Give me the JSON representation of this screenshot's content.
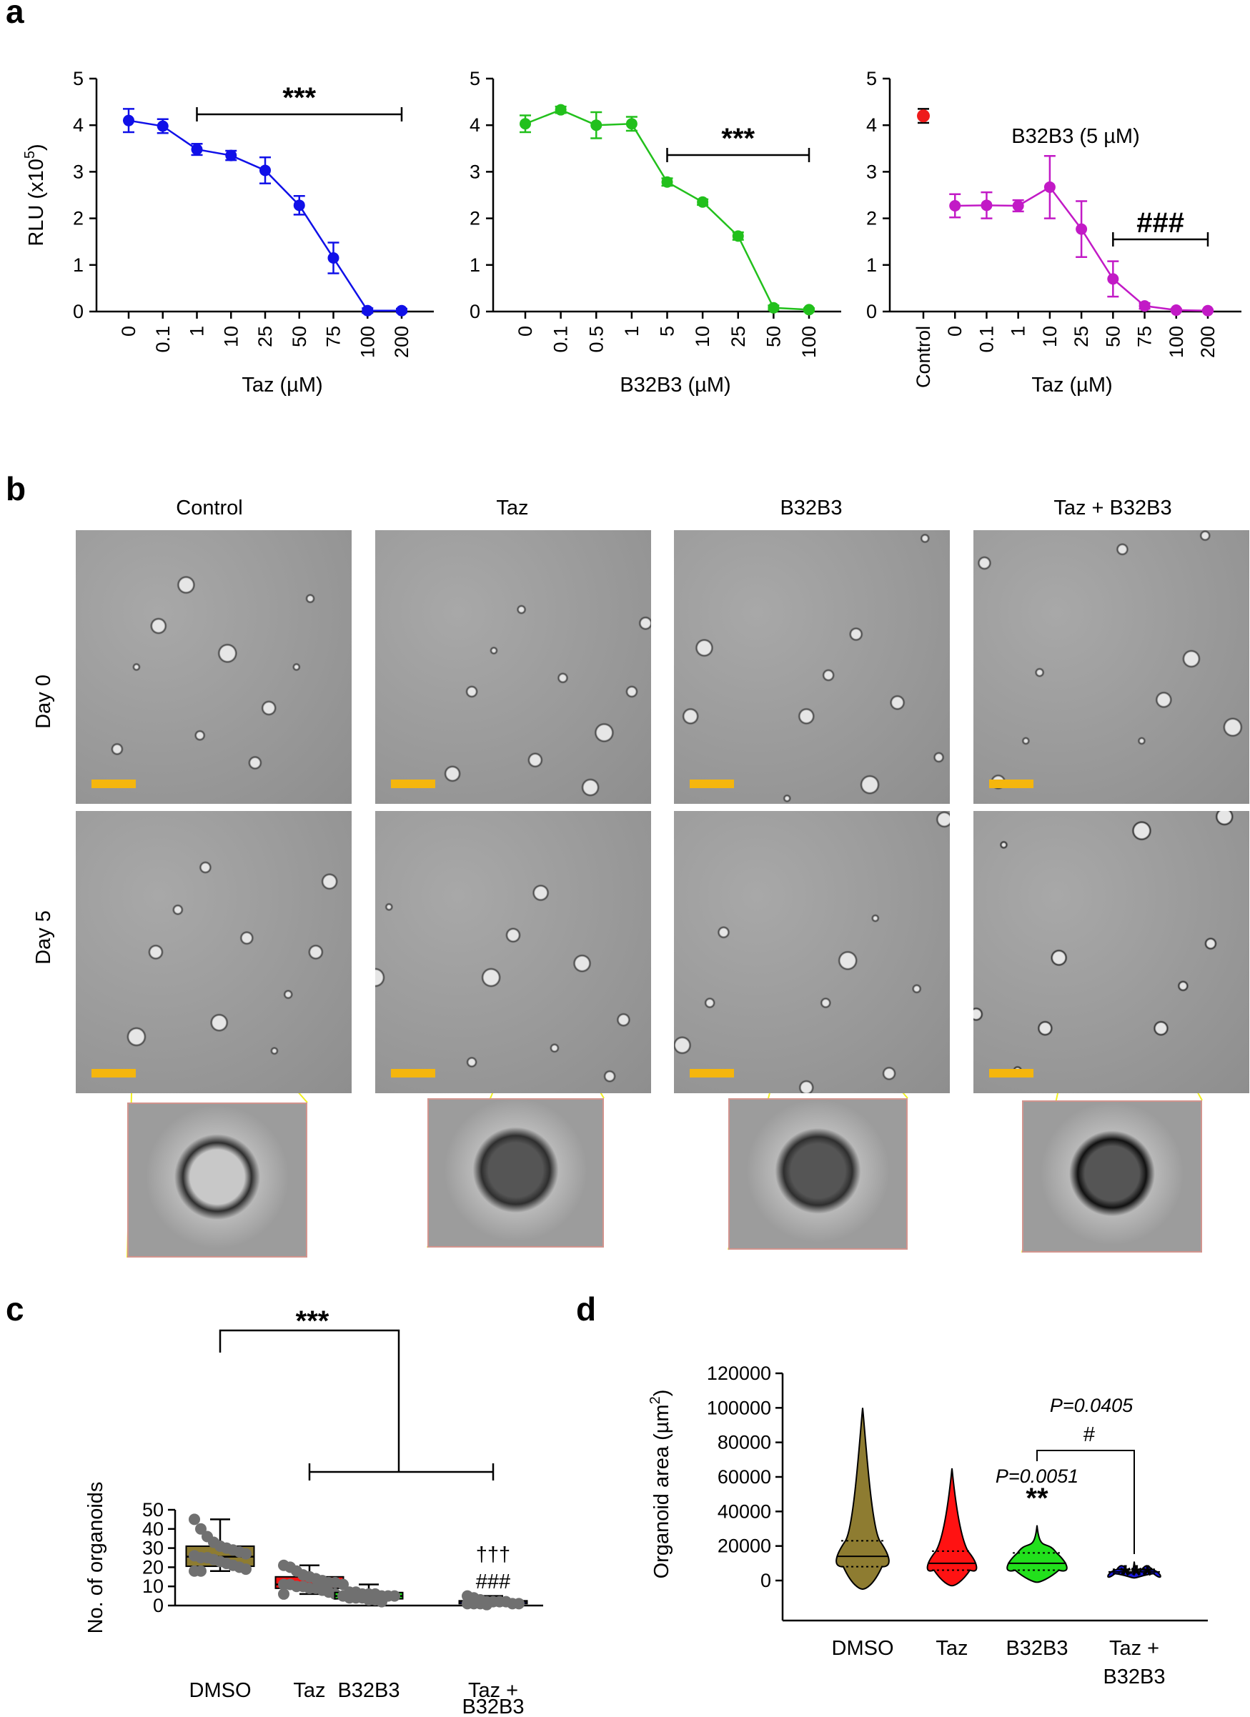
{
  "panels": {
    "a": "a",
    "b": "b",
    "c": "c",
    "d": "d"
  },
  "chart_data": [
    {
      "type": "line",
      "panel": "a-left",
      "categories": [
        "0",
        "0.1",
        "1",
        "10",
        "25",
        "50",
        "75",
        "100",
        "200"
      ],
      "series": [
        {
          "values": [
            4.1,
            3.98,
            3.48,
            3.35,
            3.03,
            2.28,
            1.15,
            0.02,
            0.02
          ],
          "errors": [
            0.25,
            0.15,
            0.12,
            0.1,
            0.28,
            0.2,
            0.33,
            0.05,
            0.04
          ]
        }
      ],
      "ylabel": "RLU (x10",
      "ylabel_sup": "5",
      "ylabel_end": ")",
      "xlabel": "Taz (µM)",
      "ylim": [
        0,
        5
      ],
      "yticks": [
        "0",
        "1",
        "2",
        "3",
        "4",
        "5"
      ],
      "bracket_from": "1",
      "bracket_to": "200",
      "sig": "***",
      "color": "#1010e8"
    },
    {
      "type": "line",
      "panel": "a-middle",
      "categories": [
        "0",
        "0.1",
        "0.5",
        "1",
        "5",
        "10",
        "25",
        "50",
        "100"
      ],
      "series": [
        {
          "values": [
            4.03,
            4.33,
            4.0,
            4.03,
            2.78,
            2.35,
            1.62,
            0.08,
            0.04
          ],
          "errors": [
            0.18,
            0.07,
            0.28,
            0.15,
            0.08,
            0.06,
            0.08,
            0.05,
            0.03
          ]
        }
      ],
      "xlabel": "B32B3 (µM)",
      "ylim": [
        0,
        5
      ],
      "yticks": [
        "0",
        "1",
        "2",
        "3",
        "4",
        "5"
      ],
      "bracket_from": "5",
      "bracket_to": "100",
      "sig": "***",
      "color": "#22c01c"
    },
    {
      "type": "line",
      "panel": "a-right",
      "categories": [
        "Control",
        "0",
        "0.1",
        "1",
        "10",
        "25",
        "50",
        "75",
        "100",
        "200"
      ],
      "control": {
        "value": 4.2,
        "error": 0.15,
        "color": "#ee1b1b"
      },
      "series": [
        {
          "values": [
            null,
            2.27,
            2.28,
            2.27,
            2.67,
            1.77,
            0.7,
            0.12,
            0.03,
            0.02
          ],
          "errors": [
            null,
            0.25,
            0.28,
            0.12,
            0.67,
            0.6,
            0.38,
            0.06,
            0.03,
            0.02
          ]
        }
      ],
      "xlabel": "Taz (µM)",
      "annotation": "B32B3 (5 µM)",
      "ylim": [
        0,
        5
      ],
      "yticks": [
        "0",
        "1",
        "2",
        "3",
        "4",
        "5"
      ],
      "bracket_from": "50",
      "bracket_to": "200",
      "sig": "###",
      "color": "#c21ac6"
    },
    {
      "type": "box",
      "panel": "c",
      "ylabel": "No. of organoids",
      "ylim": [
        0,
        50
      ],
      "yticks": [
        "0",
        "10",
        "20",
        "30",
        "40",
        "50"
      ],
      "categories": [
        "DMSO",
        "Taz",
        "B32B3",
        "Taz +",
        "B32B3"
      ],
      "groups": [
        {
          "name": "DMSO",
          "color": "#8e7c31",
          "min": 18,
          "q1": 20.5,
          "median": 25.5,
          "q3": 31,
          "max": 45,
          "points": [
            45,
            40,
            36,
            33,
            31,
            30,
            29,
            28,
            27,
            26,
            25,
            25,
            24,
            23,
            22,
            21,
            20,
            19,
            18,
            18
          ]
        },
        {
          "name": "Taz",
          "color": "#ff1212",
          "min": 6,
          "q1": 9,
          "median": 11,
          "q3": 15,
          "max": 21,
          "points": [
            21,
            20,
            18,
            16,
            15,
            14,
            13,
            12,
            12,
            11,
            11,
            10,
            10,
            9,
            9,
            8,
            7,
            6,
            6
          ]
        },
        {
          "name": "B32B3",
          "color": "#22e01c",
          "min": 2,
          "q1": 3.5,
          "median": 5,
          "q3": 6.8,
          "max": 11,
          "points": [
            11,
            7,
            7,
            6,
            6,
            6,
            5,
            5,
            5,
            5,
            4,
            4,
            4,
            3,
            3,
            2
          ]
        },
        {
          "name": "Taz + B32B3",
          "color": "#1818d8",
          "min": 0.5,
          "q1": 1,
          "median": 2,
          "q3": 2.5,
          "max": 5,
          "points": [
            5,
            4,
            3,
            2,
            2,
            2,
            2,
            1,
            1,
            1,
            1,
            1,
            0.5
          ]
        }
      ],
      "top_sig": "***",
      "extra_sig": [
        "†††",
        "###"
      ]
    },
    {
      "type": "violin",
      "panel": "d",
      "ylabel": "Organoid area (µm",
      "ylabel_sup": "2",
      "ylabel_end": ")",
      "ylim": [
        0,
        120000
      ],
      "yticks": [
        "0",
        "20000",
        "40000",
        "60000",
        "80000",
        "100000",
        "120000"
      ],
      "categories": [
        "DMSO",
        "Taz",
        "B32B3",
        "Taz +",
        "B32B3"
      ],
      "groups": [
        {
          "name": "DMSO",
          "color": "#8e7c31",
          "min": -5000,
          "max": 100000,
          "median": 14000,
          "q1": 8000,
          "q3": 23000
        },
        {
          "name": "Taz",
          "color": "#ff1212",
          "min": -3000,
          "max": 65000,
          "median": 10000,
          "q1": 6000,
          "q3": 17000
        },
        {
          "name": "B32B3",
          "color": "#22e01c",
          "min": -1000,
          "max": 32000,
          "median": 10000,
          "q1": 6000,
          "q3": 16000
        },
        {
          "name": "Taz + B32B3",
          "color": "#1818d8",
          "min": 1500,
          "max": 11000,
          "median": 5000,
          "q1": 4000,
          "q3": 6500
        }
      ],
      "sig": {
        "b32b3_p": "P=0.0051",
        "b32b3": "**",
        "combo": "***",
        "bracket_p": "P=0.0405",
        "bracket": "#"
      }
    }
  ],
  "micrographs": {
    "columns": [
      "Control",
      "Taz",
      "B32B3",
      "Taz + B32B3"
    ],
    "rows": [
      "Day 0",
      "Day 5"
    ]
  }
}
